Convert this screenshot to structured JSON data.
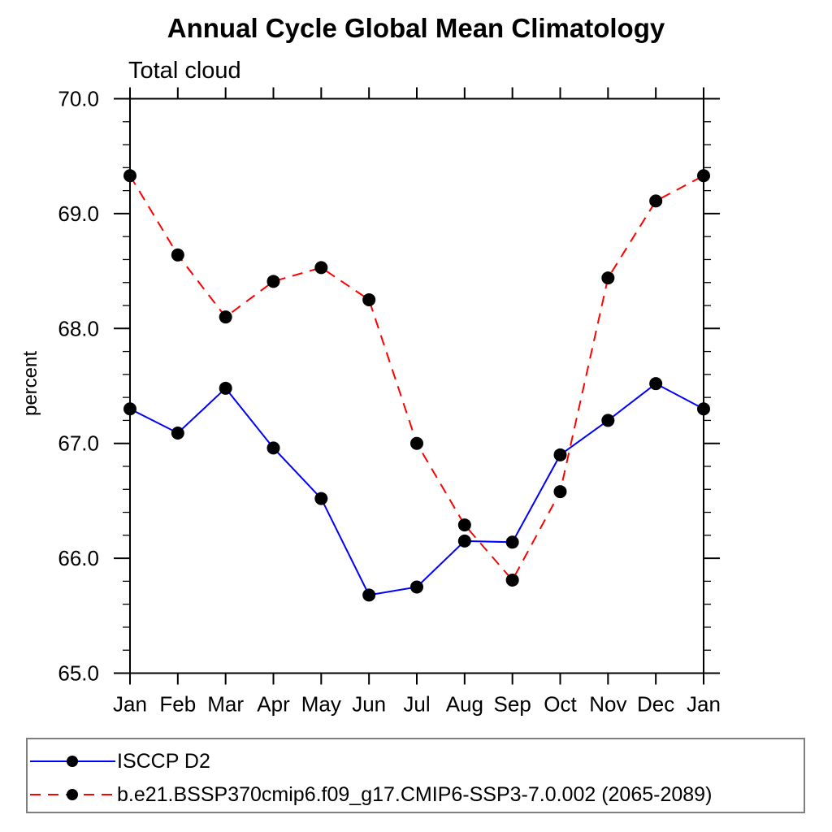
{
  "chart_data": {
    "type": "line",
    "title": "Annual Cycle Global Mean Climatology",
    "subtitle": "Total cloud",
    "xlabel": "",
    "ylabel": "percent",
    "categories": [
      "Jan",
      "Feb",
      "Mar",
      "Apr",
      "May",
      "Jun",
      "Jul",
      "Aug",
      "Sep",
      "Oct",
      "Nov",
      "Dec",
      "Jan"
    ],
    "ylim": [
      65.0,
      70.0
    ],
    "ytick_major": 1.0,
    "ytick_minor": 0.2,
    "ytick_labels": [
      "65.0",
      "66.0",
      "67.0",
      "68.0",
      "69.0",
      "70.0"
    ],
    "grid": false,
    "legend_position": "bottom-left-box",
    "axis_color": "#000000",
    "marker": "filled-circle",
    "marker_color": "#000000",
    "series": [
      {
        "name": "ISCCP D2",
        "color": "#0000ff",
        "line_style": "solid",
        "values": [
          67.3,
          67.09,
          67.48,
          66.96,
          66.52,
          65.68,
          65.75,
          66.15,
          66.14,
          66.9,
          67.2,
          67.52,
          67.3
        ]
      },
      {
        "name": "b.e21.BSSP370cmip6.f09_g17.CMIP6-SSP3-7.0.002 (2065-2089)",
        "color": "#ff0000",
        "line_style": "dashed",
        "values": [
          69.33,
          68.64,
          68.1,
          68.41,
          68.53,
          68.25,
          67.0,
          66.29,
          65.81,
          66.58,
          68.44,
          69.11,
          69.33
        ]
      }
    ]
  }
}
